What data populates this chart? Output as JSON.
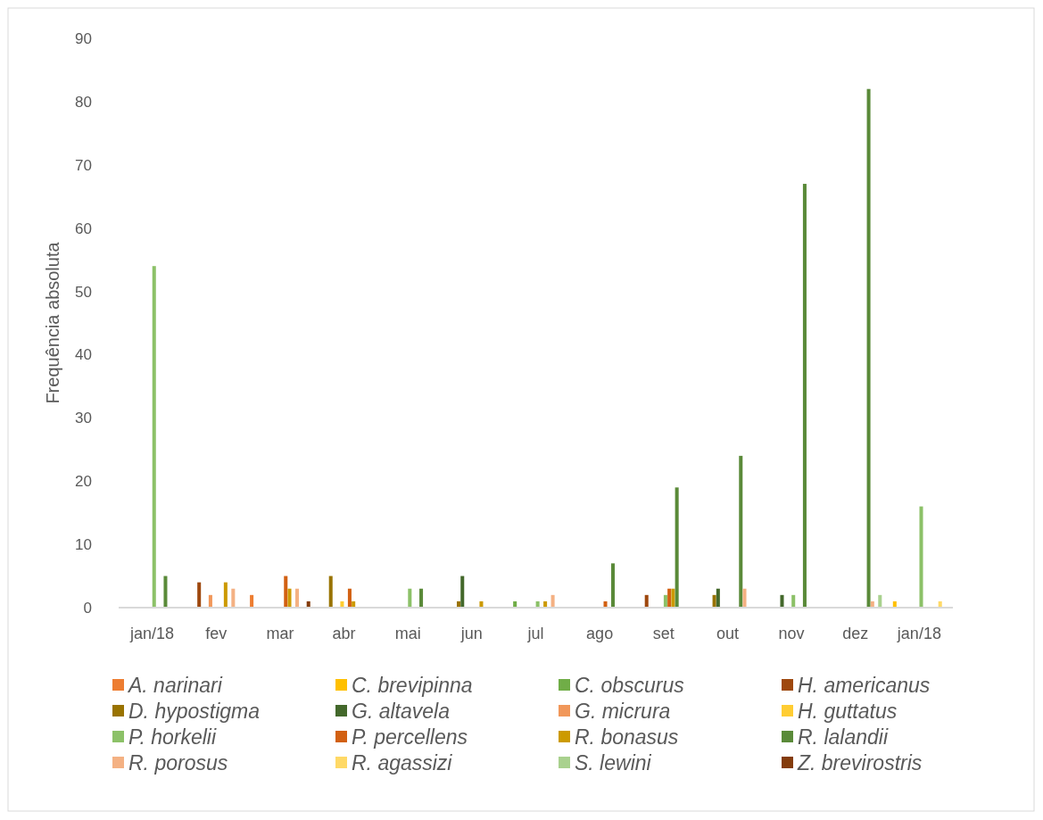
{
  "chart_data": {
    "type": "bar",
    "ylabel": "Frequência absoluta",
    "categories": [
      "jan/18",
      "fev",
      "mar",
      "abr",
      "mai",
      "jun",
      "jul",
      "ago",
      "set",
      "out",
      "nov",
      "dez",
      "jan/18"
    ],
    "ylim": [
      0,
      90
    ],
    "yticks": [
      0,
      10,
      20,
      30,
      40,
      50,
      60,
      70,
      80,
      90
    ],
    "grid": false,
    "legend": "bottom",
    "series": [
      {
        "name": "A. narinari",
        "color": "#ed7d31",
        "values": [
          null,
          null,
          2,
          null,
          null,
          null,
          null,
          null,
          null,
          null,
          null,
          null,
          null
        ]
      },
      {
        "name": "C. brevipinna",
        "color": "#ffc000",
        "values": [
          null,
          null,
          null,
          null,
          null,
          null,
          null,
          null,
          null,
          null,
          null,
          null,
          1
        ]
      },
      {
        "name": "C. obscurus",
        "color": "#70ad47",
        "values": [
          null,
          null,
          null,
          null,
          null,
          null,
          1,
          null,
          null,
          null,
          null,
          null,
          null
        ]
      },
      {
        "name": "H. americanus",
        "color": "#9e480e",
        "values": [
          null,
          4,
          null,
          null,
          null,
          null,
          null,
          null,
          2,
          null,
          null,
          null,
          null
        ]
      },
      {
        "name": "D. hypostigma",
        "color": "#997300",
        "values": [
          null,
          null,
          null,
          5,
          null,
          1,
          null,
          null,
          null,
          2,
          null,
          null,
          null
        ]
      },
      {
        "name": "G. altavela",
        "color": "#43682b",
        "values": [
          null,
          null,
          null,
          null,
          null,
          5,
          null,
          null,
          null,
          3,
          2,
          null,
          null
        ]
      },
      {
        "name": "G. micrura",
        "color": "#f1975a",
        "values": [
          null,
          2,
          null,
          null,
          null,
          null,
          null,
          null,
          null,
          null,
          null,
          null,
          null
        ]
      },
      {
        "name": "H. guttatus",
        "color": "#ffcd33",
        "values": [
          null,
          null,
          null,
          1,
          null,
          null,
          null,
          null,
          null,
          null,
          null,
          null,
          null
        ]
      },
      {
        "name": "P. horkelii",
        "color": "#8cc168",
        "values": [
          54,
          null,
          null,
          null,
          3,
          null,
          1,
          null,
          2,
          null,
          2,
          null,
          16
        ]
      },
      {
        "name": "P. percellens",
        "color": "#d26012",
        "values": [
          null,
          null,
          5,
          3,
          null,
          null,
          null,
          1,
          3,
          null,
          null,
          null,
          null
        ]
      },
      {
        "name": "R. bonasus",
        "color": "#cc9a00",
        "values": [
          null,
          4,
          3,
          1,
          null,
          1,
          1,
          null,
          3,
          null,
          null,
          null,
          null
        ]
      },
      {
        "name": "R. lalandii",
        "color": "#5a8a39",
        "values": [
          5,
          null,
          null,
          null,
          3,
          null,
          null,
          7,
          19,
          24,
          67,
          82,
          null
        ]
      },
      {
        "name": "R. porosus",
        "color": "#f4b183",
        "values": [
          null,
          3,
          3,
          null,
          null,
          null,
          2,
          null,
          null,
          3,
          null,
          1,
          null
        ]
      },
      {
        "name": "R. agassizi",
        "color": "#ffd966",
        "values": [
          null,
          null,
          null,
          null,
          null,
          null,
          null,
          null,
          null,
          null,
          null,
          null,
          1
        ]
      },
      {
        "name": "S. lewini",
        "color": "#a9d18e",
        "values": [
          null,
          null,
          null,
          null,
          null,
          null,
          null,
          null,
          null,
          null,
          null,
          2,
          null
        ]
      },
      {
        "name": "Z. brevirostris",
        "color": "#843c0c",
        "values": [
          null,
          null,
          1,
          null,
          null,
          null,
          null,
          null,
          null,
          null,
          null,
          null,
          null
        ]
      }
    ]
  }
}
